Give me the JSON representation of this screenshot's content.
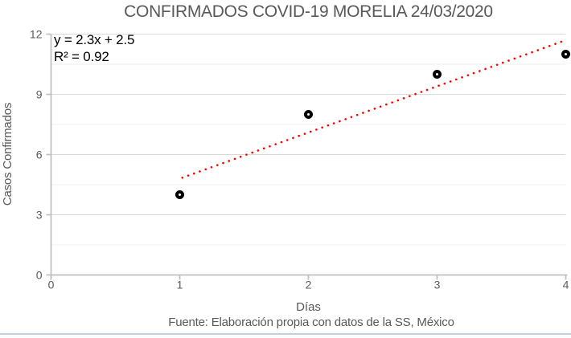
{
  "chart_data": {
    "type": "scatter",
    "title": "CONFIRMADOS COVID-19 MORELIA 24/03/2020",
    "xlabel": "Días",
    "ylabel": "Casos Confirmados",
    "source_caption": "Fuente: Elaboración propia con datos de la SS, México",
    "x": [
      1,
      2,
      3,
      4
    ],
    "y": [
      4,
      8,
      10,
      11
    ],
    "xlim": [
      0,
      4
    ],
    "ylim": [
      0,
      12
    ],
    "x_ticks": [
      0,
      1,
      2,
      3,
      4
    ],
    "y_ticks": [
      0,
      3,
      6,
      9,
      12
    ],
    "y_minor_ticks": [
      1.5,
      4.5,
      7.5,
      10.5
    ],
    "grid": "horizontal major and minor, no vertical gridlines",
    "legend": "none",
    "marker": {
      "shape": "open-circle",
      "color": "#000000",
      "fill": "#ffffff"
    },
    "trendline": {
      "label_equation": "y = 2.3x + 2.5",
      "label_r2": "R² = 0.92",
      "slope": 2.3,
      "intercept": 2.5,
      "x_start": 1.02,
      "x_end": 3.97,
      "color": "#ff0000",
      "style": "dotted"
    },
    "colors": {
      "title_text": "#595959",
      "axis_text": "#595959",
      "equation_text": "#000000",
      "axis_line": "#bfbfbf",
      "gridline_major": "#d9d9d9",
      "gridline_minor": "#efefef"
    }
  },
  "page": {
    "bottom_divider_color": "#bfcfdf"
  }
}
